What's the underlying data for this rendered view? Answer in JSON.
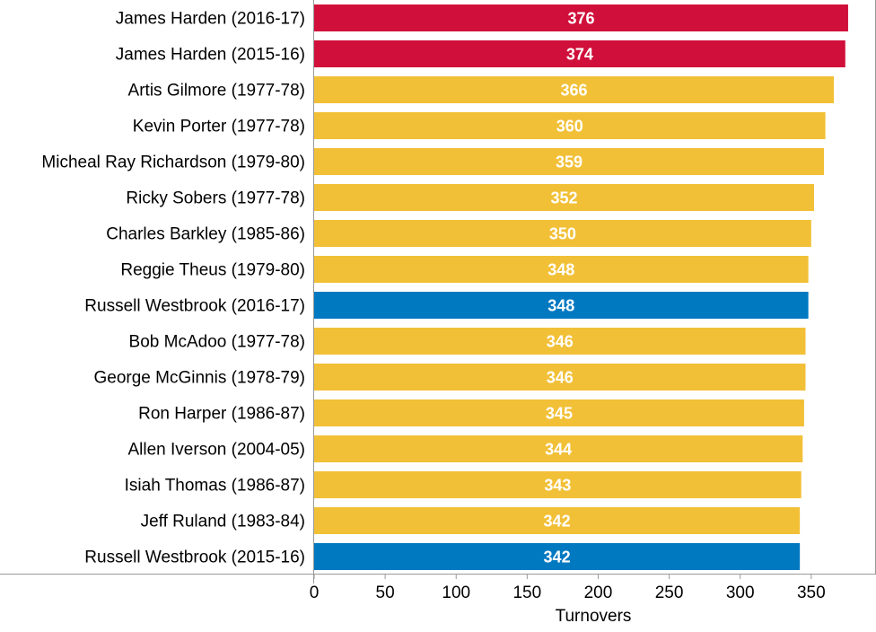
{
  "chart_data": {
    "type": "bar",
    "orientation": "horizontal",
    "categories": [
      "James Harden (2016-17)",
      "James Harden (2015-16)",
      "Artis Gilmore (1977-78)",
      "Kevin Porter (1977-78)",
      "Micheal Ray Richardson (1979-80)",
      "Ricky Sobers (1977-78)",
      "Charles Barkley (1985-86)",
      "Reggie Theus (1979-80)",
      "Russell Westbrook (2016-17)",
      "Bob McAdoo (1977-78)",
      "George McGinnis (1978-79)",
      "Ron Harper (1986-87)",
      "Allen Iverson (2004-05)",
      "Isiah Thomas (1986-87)",
      "Jeff Ruland (1983-84)",
      "Russell Westbrook (2015-16)"
    ],
    "values": [
      376,
      374,
      366,
      360,
      359,
      352,
      350,
      348,
      348,
      346,
      346,
      345,
      344,
      343,
      342,
      342
    ],
    "bar_colors": [
      "#D0103A",
      "#D0103A",
      "#F2C037",
      "#F2C037",
      "#F2C037",
      "#F2C037",
      "#F2C037",
      "#F2C037",
      "#0079C1",
      "#F2C037",
      "#F2C037",
      "#F2C037",
      "#F2C037",
      "#F2C037",
      "#F2C037",
      "#0079C1"
    ],
    "xlabel": "Turnovers",
    "x_ticks": [
      0,
      50,
      100,
      150,
      200,
      250,
      300,
      350
    ],
    "xlim": [
      0,
      380
    ],
    "grid": false,
    "data_labels": true
  }
}
